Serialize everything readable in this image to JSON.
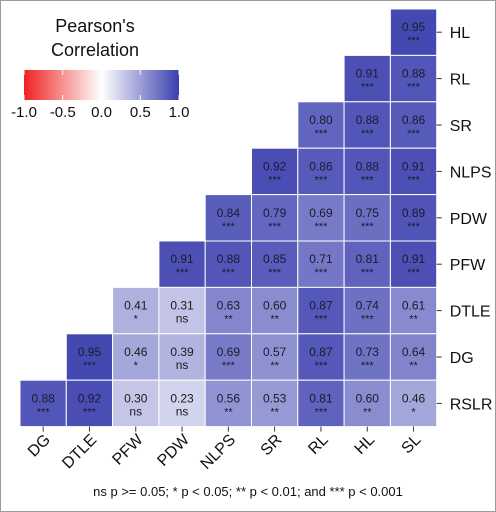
{
  "chart_data": {
    "type": "heatmap",
    "title": "",
    "legend": {
      "title_line1": "Pearson's",
      "title_line2": "Correlation",
      "ticks": [
        "-1.0",
        "-0.5",
        "0.0",
        "0.5",
        "1.0"
      ],
      "range": [
        -1.0,
        1.0
      ],
      "colors": {
        "low": "#ee2222",
        "mid": "#ffffff",
        "high": "#3a3fae"
      },
      "placement": "top-left"
    },
    "x_labels": [
      "DG",
      "DTLE",
      "PFW",
      "PDW",
      "NLPS",
      "SR",
      "RL",
      "HL",
      "SL"
    ],
    "y_labels": [
      "HL",
      "RL",
      "SR",
      "NLPS",
      "PDW",
      "PFW",
      "DTLE",
      "DG",
      "RSLR"
    ],
    "rows": [
      {
        "y": "HL",
        "values": [
          null,
          null,
          null,
          null,
          null,
          null,
          null,
          null,
          "0.95"
        ],
        "sig": [
          null,
          null,
          null,
          null,
          null,
          null,
          null,
          null,
          "***"
        ]
      },
      {
        "y": "RL",
        "values": [
          null,
          null,
          null,
          null,
          null,
          null,
          null,
          "0.91",
          "0.88"
        ],
        "sig": [
          null,
          null,
          null,
          null,
          null,
          null,
          null,
          "***",
          "***"
        ]
      },
      {
        "y": "SR",
        "values": [
          null,
          null,
          null,
          null,
          null,
          null,
          "0.80",
          "0.88",
          "0.86"
        ],
        "sig": [
          null,
          null,
          null,
          null,
          null,
          null,
          "***",
          "***",
          "***"
        ]
      },
      {
        "y": "NLPS",
        "values": [
          null,
          null,
          null,
          null,
          null,
          "0.92",
          "0.86",
          "0.88",
          "0.91"
        ],
        "sig": [
          null,
          null,
          null,
          null,
          null,
          "***",
          "***",
          "***",
          "***"
        ]
      },
      {
        "y": "PDW",
        "values": [
          null,
          null,
          null,
          null,
          "0.84",
          "0.79",
          "0.69",
          "0.75",
          "0.89"
        ],
        "sig": [
          null,
          null,
          null,
          null,
          "***",
          "***",
          "***",
          "***",
          "***"
        ]
      },
      {
        "y": "PFW",
        "values": [
          null,
          null,
          null,
          "0.91",
          "0.88",
          "0.85",
          "0.71",
          "0.81",
          "0.91"
        ],
        "sig": [
          null,
          null,
          null,
          "***",
          "***",
          "***",
          "***",
          "***",
          "***"
        ]
      },
      {
        "y": "DTLE",
        "values": [
          null,
          null,
          "0.41",
          "0.31",
          "0.63",
          "0.60",
          "0.87",
          "0.74",
          "0.61"
        ],
        "sig": [
          null,
          null,
          "*",
          "ns",
          "**",
          "**",
          "***",
          "***",
          "**"
        ]
      },
      {
        "y": "DG",
        "values": [
          null,
          "0.95",
          "0.46",
          "0.39",
          "0.69",
          "0.57",
          "0.87",
          "0.73",
          "0.64"
        ],
        "sig": [
          null,
          "***",
          "*",
          "ns",
          "***",
          "**",
          "***",
          "***",
          "**"
        ]
      },
      {
        "y": "RSLR",
        "values": [
          "0.88",
          "0.92",
          "0.30",
          "0.23",
          "0.56",
          "0.53",
          "0.81",
          "0.60",
          "0.46"
        ],
        "sig": [
          "***",
          "***",
          "ns",
          "ns",
          "**",
          "**",
          "***",
          "**",
          "*"
        ]
      }
    ],
    "footnote": "ns p >= 0.05; * p < 0.05; ** p < 0.01; and *** p < 0.001"
  }
}
